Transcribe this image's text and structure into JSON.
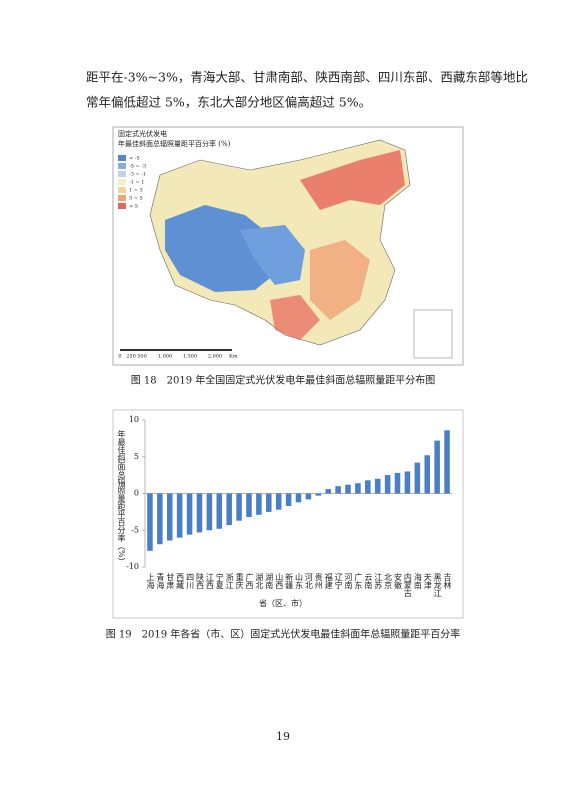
{
  "paragraph": [
    "距平在-3%~3%，青海大部、甘肃南部、陕西南部、四川东部、西藏东部等地比",
    "常年偏低超过 5%，东北大部分地区偏高超过 5%。"
  ],
  "figure18": {
    "title": [
      "固定式光伏发电",
      "年最佳斜面总辐照量距平百分率 (%)"
    ],
    "legend": [
      {
        "label": "< -5",
        "color": "#4f86d6"
      },
      {
        "label": "-5 ~ -3",
        "color": "#86aede"
      },
      {
        "label": "-3 ~ -1",
        "color": "#bcd4e6"
      },
      {
        "label": "-1 ~ 1",
        "color": "#f3f0c4"
      },
      {
        "label": "1 ~ 3",
        "color": "#f6d39a"
      },
      {
        "label": "3 ~ 5",
        "color": "#f0a277"
      },
      {
        "label": "> 5",
        "color": "#e8645a"
      }
    ],
    "scale": [
      "0",
      "250",
      "500",
      "1,000",
      "1,500",
      "2,000"
    ],
    "scale_unit": "Km",
    "caption": "图 18　2019 年全国固定式光伏发电年最佳斜面总辐照量距平分布图"
  },
  "chart_data": {
    "type": "bar",
    "color": "#4a7fc8",
    "categories": [
      "上海",
      "青海",
      "甘肃",
      "西藏",
      "四川",
      "陕西",
      "江西",
      "宁夏",
      "浙江",
      "重庆",
      "广西",
      "湖北",
      "湖南",
      "山西",
      "新疆",
      "山东",
      "河北",
      "贵州",
      "福建",
      "辽宁",
      "河南",
      "广东",
      "云南",
      "江苏",
      "北京",
      "安徽",
      "内蒙古",
      "海南",
      "天津",
      "黑龙江",
      "吉林"
    ],
    "values": [
      -7.8,
      -6.9,
      -6.4,
      -6.0,
      -5.6,
      -5.3,
      -5.0,
      -4.8,
      -4.3,
      -3.7,
      -3.2,
      -2.9,
      -2.5,
      -2.2,
      -1.7,
      -1.2,
      -0.8,
      -0.3,
      0.6,
      1.0,
      1.2,
      1.4,
      1.8,
      2.0,
      2.5,
      2.8,
      3.0,
      4.2,
      5.2,
      7.2,
      8.6
    ],
    "ylim": [
      -10,
      10
    ],
    "yticks": [
      -10,
      -5,
      0,
      5,
      10
    ],
    "y_label": "年最佳斜面总辐照量距平百分率（%）",
    "x_label": "省（区、市）"
  },
  "figure19_caption": "图 19　2019 年各省（市、区）固定式光伏发电最佳斜面年总辐照量距平百分率",
  "page_number": "19"
}
